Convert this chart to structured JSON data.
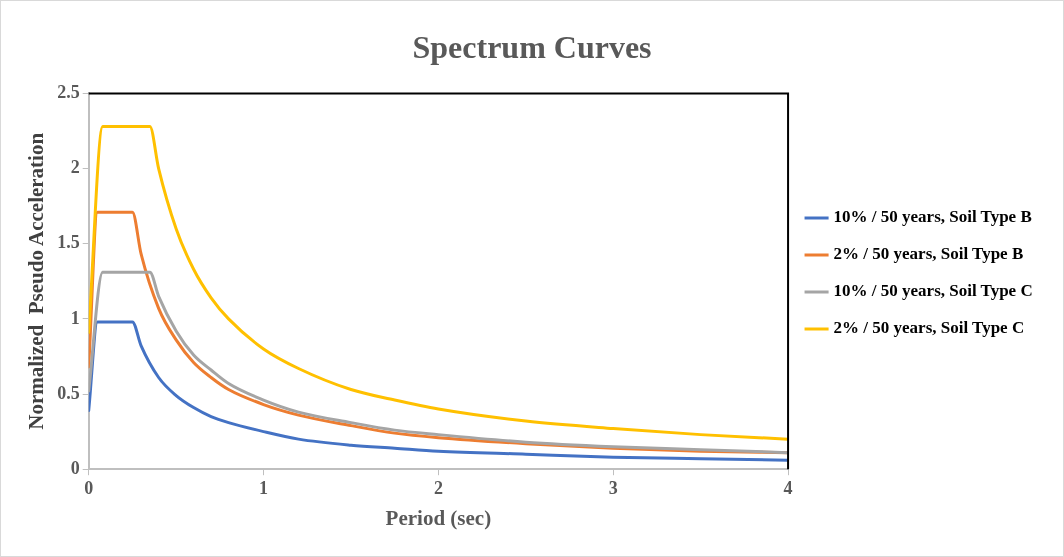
{
  "chart_data": {
    "type": "line",
    "title": "Spectrum Curves",
    "xlabel": "Period (sec)",
    "ylabel": "Normalized  Pseudo Acceleration",
    "xlim": [
      0,
      4
    ],
    "xticks": [
      0,
      1,
      2,
      3,
      4
    ],
    "ylim": [
      0,
      2.5
    ],
    "yticks": [
      0,
      0.5,
      1,
      1.5,
      2,
      2.5
    ],
    "grid": false,
    "legend": "right",
    "marker": "none",
    "series": [
      {
        "name": "10% / 50 years, Soil Type B",
        "color": "#4472c4",
        "x": [
          0,
          0.05,
          0.25,
          0.3,
          0.4,
          0.5,
          0.6,
          0.7,
          0.8,
          1,
          1.2,
          1.5,
          1.75,
          2,
          2.5,
          3,
          3.5,
          4
        ],
        "values": [
          0.39,
          0.98,
          0.98,
          0.82,
          0.61,
          0.49,
          0.41,
          0.35,
          0.31,
          0.25,
          0.2,
          0.16,
          0.14,
          0.12,
          0.1,
          0.08,
          0.07,
          0.06
        ]
      },
      {
        "name": "2% / 50 years, Soil Type B",
        "color": "#ed7d31",
        "x": [
          0,
          0.05,
          0.25,
          0.3,
          0.4,
          0.5,
          0.6,
          0.7,
          0.8,
          1,
          1.2,
          1.5,
          1.75,
          2,
          2.5,
          3,
          3.5,
          4
        ],
        "values": [
          0.68,
          1.71,
          1.71,
          1.43,
          1.07,
          0.86,
          0.71,
          0.61,
          0.53,
          0.43,
          0.36,
          0.29,
          0.24,
          0.21,
          0.17,
          0.14,
          0.12,
          0.11
        ]
      },
      {
        "name": "10% / 50 years, Soil Type C",
        "color": "#a5a5a5",
        "x": [
          0,
          0.08,
          0.35,
          0.4,
          0.5,
          0.6,
          0.7,
          0.8,
          1,
          1.2,
          1.5,
          1.75,
          2,
          2.5,
          3,
          3.5,
          4
        ],
        "values": [
          0.52,
          1.31,
          1.31,
          1.15,
          0.92,
          0.76,
          0.66,
          0.57,
          0.46,
          0.38,
          0.31,
          0.26,
          0.23,
          0.18,
          0.15,
          0.13,
          0.11
        ]
      },
      {
        "name": "2% / 50 years, Soil Type C",
        "color": "#ffc000",
        "x": [
          0,
          0.08,
          0.35,
          0.4,
          0.5,
          0.6,
          0.7,
          0.8,
          1,
          1.2,
          1.5,
          1.75,
          2,
          2.5,
          3,
          3.5,
          4
        ],
        "values": [
          0.91,
          2.28,
          2.28,
          2.0,
          1.6,
          1.33,
          1.14,
          1.0,
          0.8,
          0.67,
          0.53,
          0.46,
          0.4,
          0.32,
          0.27,
          0.23,
          0.2
        ]
      }
    ]
  }
}
